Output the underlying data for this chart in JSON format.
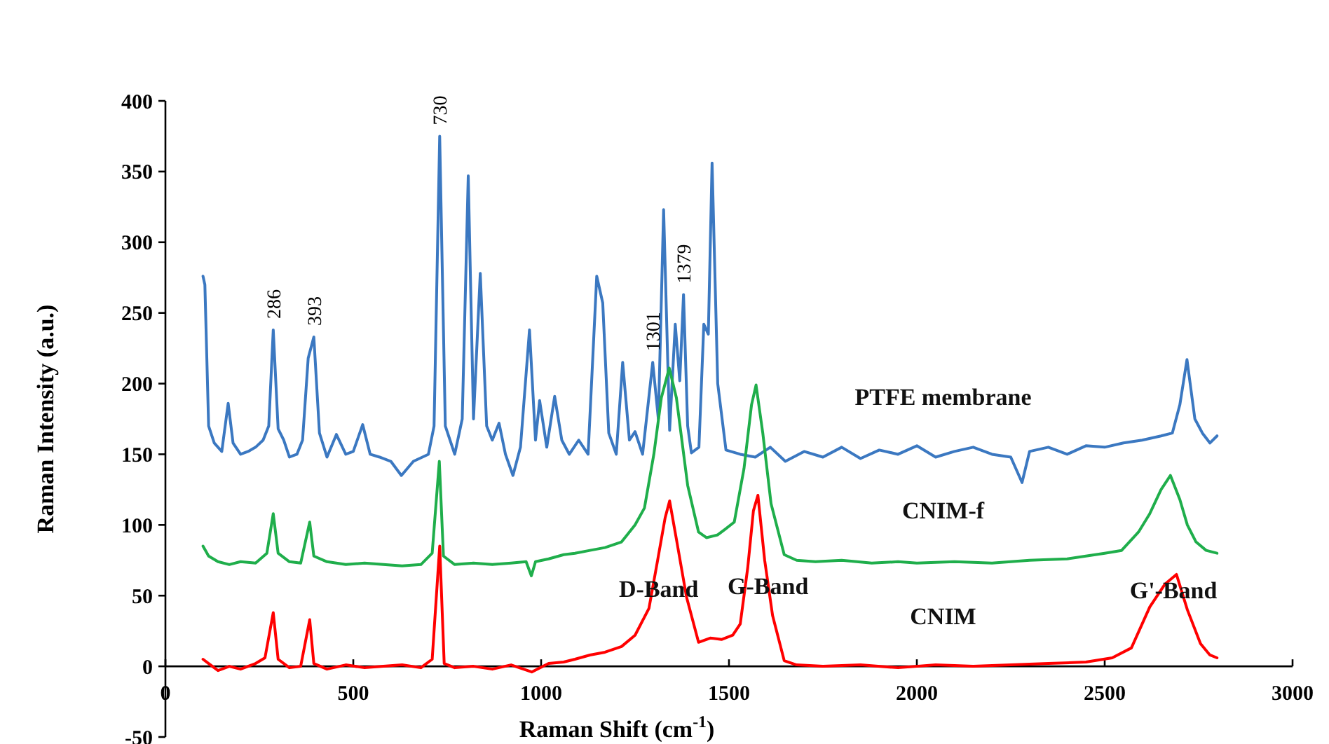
{
  "chart_data": {
    "type": "line",
    "xlabel": "Raman Shift (cm$^{-1}$)",
    "ylabel": "Raman Intensity (a.u.)",
    "xlim": [
      0,
      3000
    ],
    "xticks": [
      0,
      500,
      1000,
      1500,
      2000,
      2500,
      3000
    ],
    "ylim": [
      -50,
      400
    ],
    "yticks": [
      -50,
      0,
      50,
      100,
      150,
      200,
      250,
      300,
      350,
      400
    ],
    "grid": false,
    "marker": "none",
    "line_style": "solid",
    "series": [
      {
        "name": "PTFE membrane",
        "color": "#3b78c1",
        "x": [
          100,
          105,
          115,
          130,
          150,
          167,
          180,
          200,
          220,
          240,
          260,
          275,
          287,
          300,
          315,
          330,
          350,
          365,
          380,
          395,
          410,
          430,
          455,
          480,
          500,
          525,
          545,
          570,
          600,
          628,
          660,
          700,
          715,
          730,
          745,
          770,
          790,
          806,
          820,
          838,
          855,
          870,
          888,
          905,
          925,
          945,
          969,
          985,
          996,
          1015,
          1036,
          1055,
          1075,
          1100,
          1125,
          1148,
          1164,
          1180,
          1200,
          1217,
          1235,
          1250,
          1270,
          1297,
          1312,
          1326,
          1342,
          1357,
          1369,
          1379,
          1390,
          1400,
          1420,
          1433,
          1445,
          1455,
          1470,
          1492,
          1530,
          1570,
          1610,
          1650,
          1700,
          1750,
          1800,
          1850,
          1900,
          1950,
          2000,
          2050,
          2100,
          2150,
          2200,
          2250,
          2280,
          2300,
          2350,
          2400,
          2450,
          2500,
          2550,
          2600,
          2650,
          2680,
          2700,
          2719,
          2740,
          2760,
          2780,
          2799
        ],
        "values": [
          276,
          270,
          170,
          158,
          152,
          186,
          158,
          150,
          152,
          155,
          160,
          170,
          238,
          168,
          160,
          148,
          150,
          160,
          218,
          233,
          165,
          148,
          164,
          150,
          152,
          171,
          150,
          148,
          145,
          135,
          145,
          150,
          170,
          375,
          170,
          150,
          175,
          347,
          175,
          278,
          170,
          160,
          172,
          150,
          135,
          155,
          238,
          160,
          188,
          155,
          191,
          160,
          150,
          160,
          150,
          276,
          257,
          165,
          150,
          215,
          160,
          166,
          150,
          215,
          175,
          323,
          167,
          242,
          202,
          263,
          170,
          151,
          155,
          242,
          235,
          356,
          200,
          153,
          150,
          148,
          155,
          145,
          152,
          148,
          155,
          147,
          153,
          150,
          156,
          148,
          152,
          155,
          150,
          148,
          130,
          152,
          155,
          150,
          156,
          155,
          158,
          160,
          163,
          165,
          185,
          217,
          175,
          165,
          158,
          163
        ]
      },
      {
        "name": "CNIM-f",
        "color": "#1fae4b",
        "x": [
          100,
          115,
          140,
          170,
          200,
          240,
          270,
          287,
          300,
          330,
          360,
          384,
          395,
          430,
          480,
          530,
          580,
          630,
          680,
          710,
          729,
          740,
          770,
          820,
          870,
          920,
          960,
          974,
          985,
          1020,
          1060,
          1090,
          1130,
          1170,
          1214,
          1250,
          1275,
          1300,
          1320,
          1341,
          1360,
          1390,
          1419,
          1440,
          1470,
          1490,
          1514,
          1540,
          1560,
          1572,
          1590,
          1612,
          1647,
          1680,
          1730,
          1800,
          1880,
          1950,
          2000,
          2100,
          2200,
          2300,
          2400,
          2450,
          2500,
          2545,
          2590,
          2620,
          2650,
          2675,
          2700,
          2720,
          2743,
          2770,
          2799
        ],
        "values": [
          85,
          78,
          74,
          72,
          74,
          73,
          80,
          108,
          80,
          74,
          73,
          102,
          78,
          74,
          72,
          73,
          72,
          71,
          72,
          80,
          145,
          78,
          72,
          73,
          72,
          73,
          74,
          64,
          74,
          76,
          79,
          80,
          82,
          84,
          88,
          100,
          112,
          150,
          190,
          211,
          190,
          128,
          95,
          91,
          93,
          97,
          102,
          140,
          185,
          199,
          165,
          115,
          79,
          75,
          74,
          75,
          73,
          74,
          73,
          74,
          73,
          75,
          76,
          78,
          80,
          82,
          95,
          108,
          125,
          135,
          118,
          100,
          88,
          82,
          80
        ]
      },
      {
        "name": "CNIM",
        "color": "#ff0000",
        "x": [
          100,
          115,
          140,
          170,
          200,
          240,
          265,
          287,
          300,
          330,
          360,
          384,
          395,
          430,
          480,
          530,
          580,
          630,
          680,
          710,
          730,
          742,
          770,
          820,
          870,
          920,
          975,
          1020,
          1060,
          1090,
          1130,
          1170,
          1214,
          1250,
          1287,
          1310,
          1330,
          1342,
          1360,
          1387,
          1419,
          1450,
          1480,
          1510,
          1530,
          1550,
          1565,
          1577,
          1595,
          1616,
          1647,
          1680,
          1750,
          1850,
          1950,
          2050,
          2150,
          2250,
          2350,
          2450,
          2520,
          2571,
          2620,
          2660,
          2691,
          2720,
          2755,
          2780,
          2799
        ],
        "values": [
          5,
          2,
          -3,
          0,
          -2,
          2,
          6,
          38,
          5,
          -1,
          0,
          33,
          2,
          -2,
          1,
          -1,
          0,
          1,
          -1,
          5,
          85,
          2,
          -1,
          0,
          -2,
          1,
          -4,
          2,
          3,
          5,
          8,
          10,
          14,
          22,
          41,
          75,
          105,
          117,
          90,
          49,
          17,
          20,
          19,
          22,
          30,
          70,
          110,
          121,
          75,
          36,
          4,
          1,
          0,
          1,
          -1,
          1,
          0,
          1,
          2,
          3,
          6,
          13,
          42,
          58,
          65,
          40,
          16,
          8,
          6
        ]
      }
    ],
    "annotations": [
      {
        "text": "286",
        "x": 287,
        "y": 238
      },
      {
        "text": "393",
        "x": 395,
        "y": 233
      },
      {
        "text": "730",
        "x": 730,
        "y": 375
      },
      {
        "text": "1301",
        "x": 1297,
        "y": 215
      },
      {
        "text": "1379",
        "x": 1379,
        "y": 263
      },
      {
        "text": "D-Band",
        "x": 1313,
        "y": 55
      },
      {
        "text": "G-Band",
        "x": 1604,
        "y": 57
      },
      {
        "text": "G'-Band",
        "x": 2683,
        "y": 54
      }
    ]
  }
}
